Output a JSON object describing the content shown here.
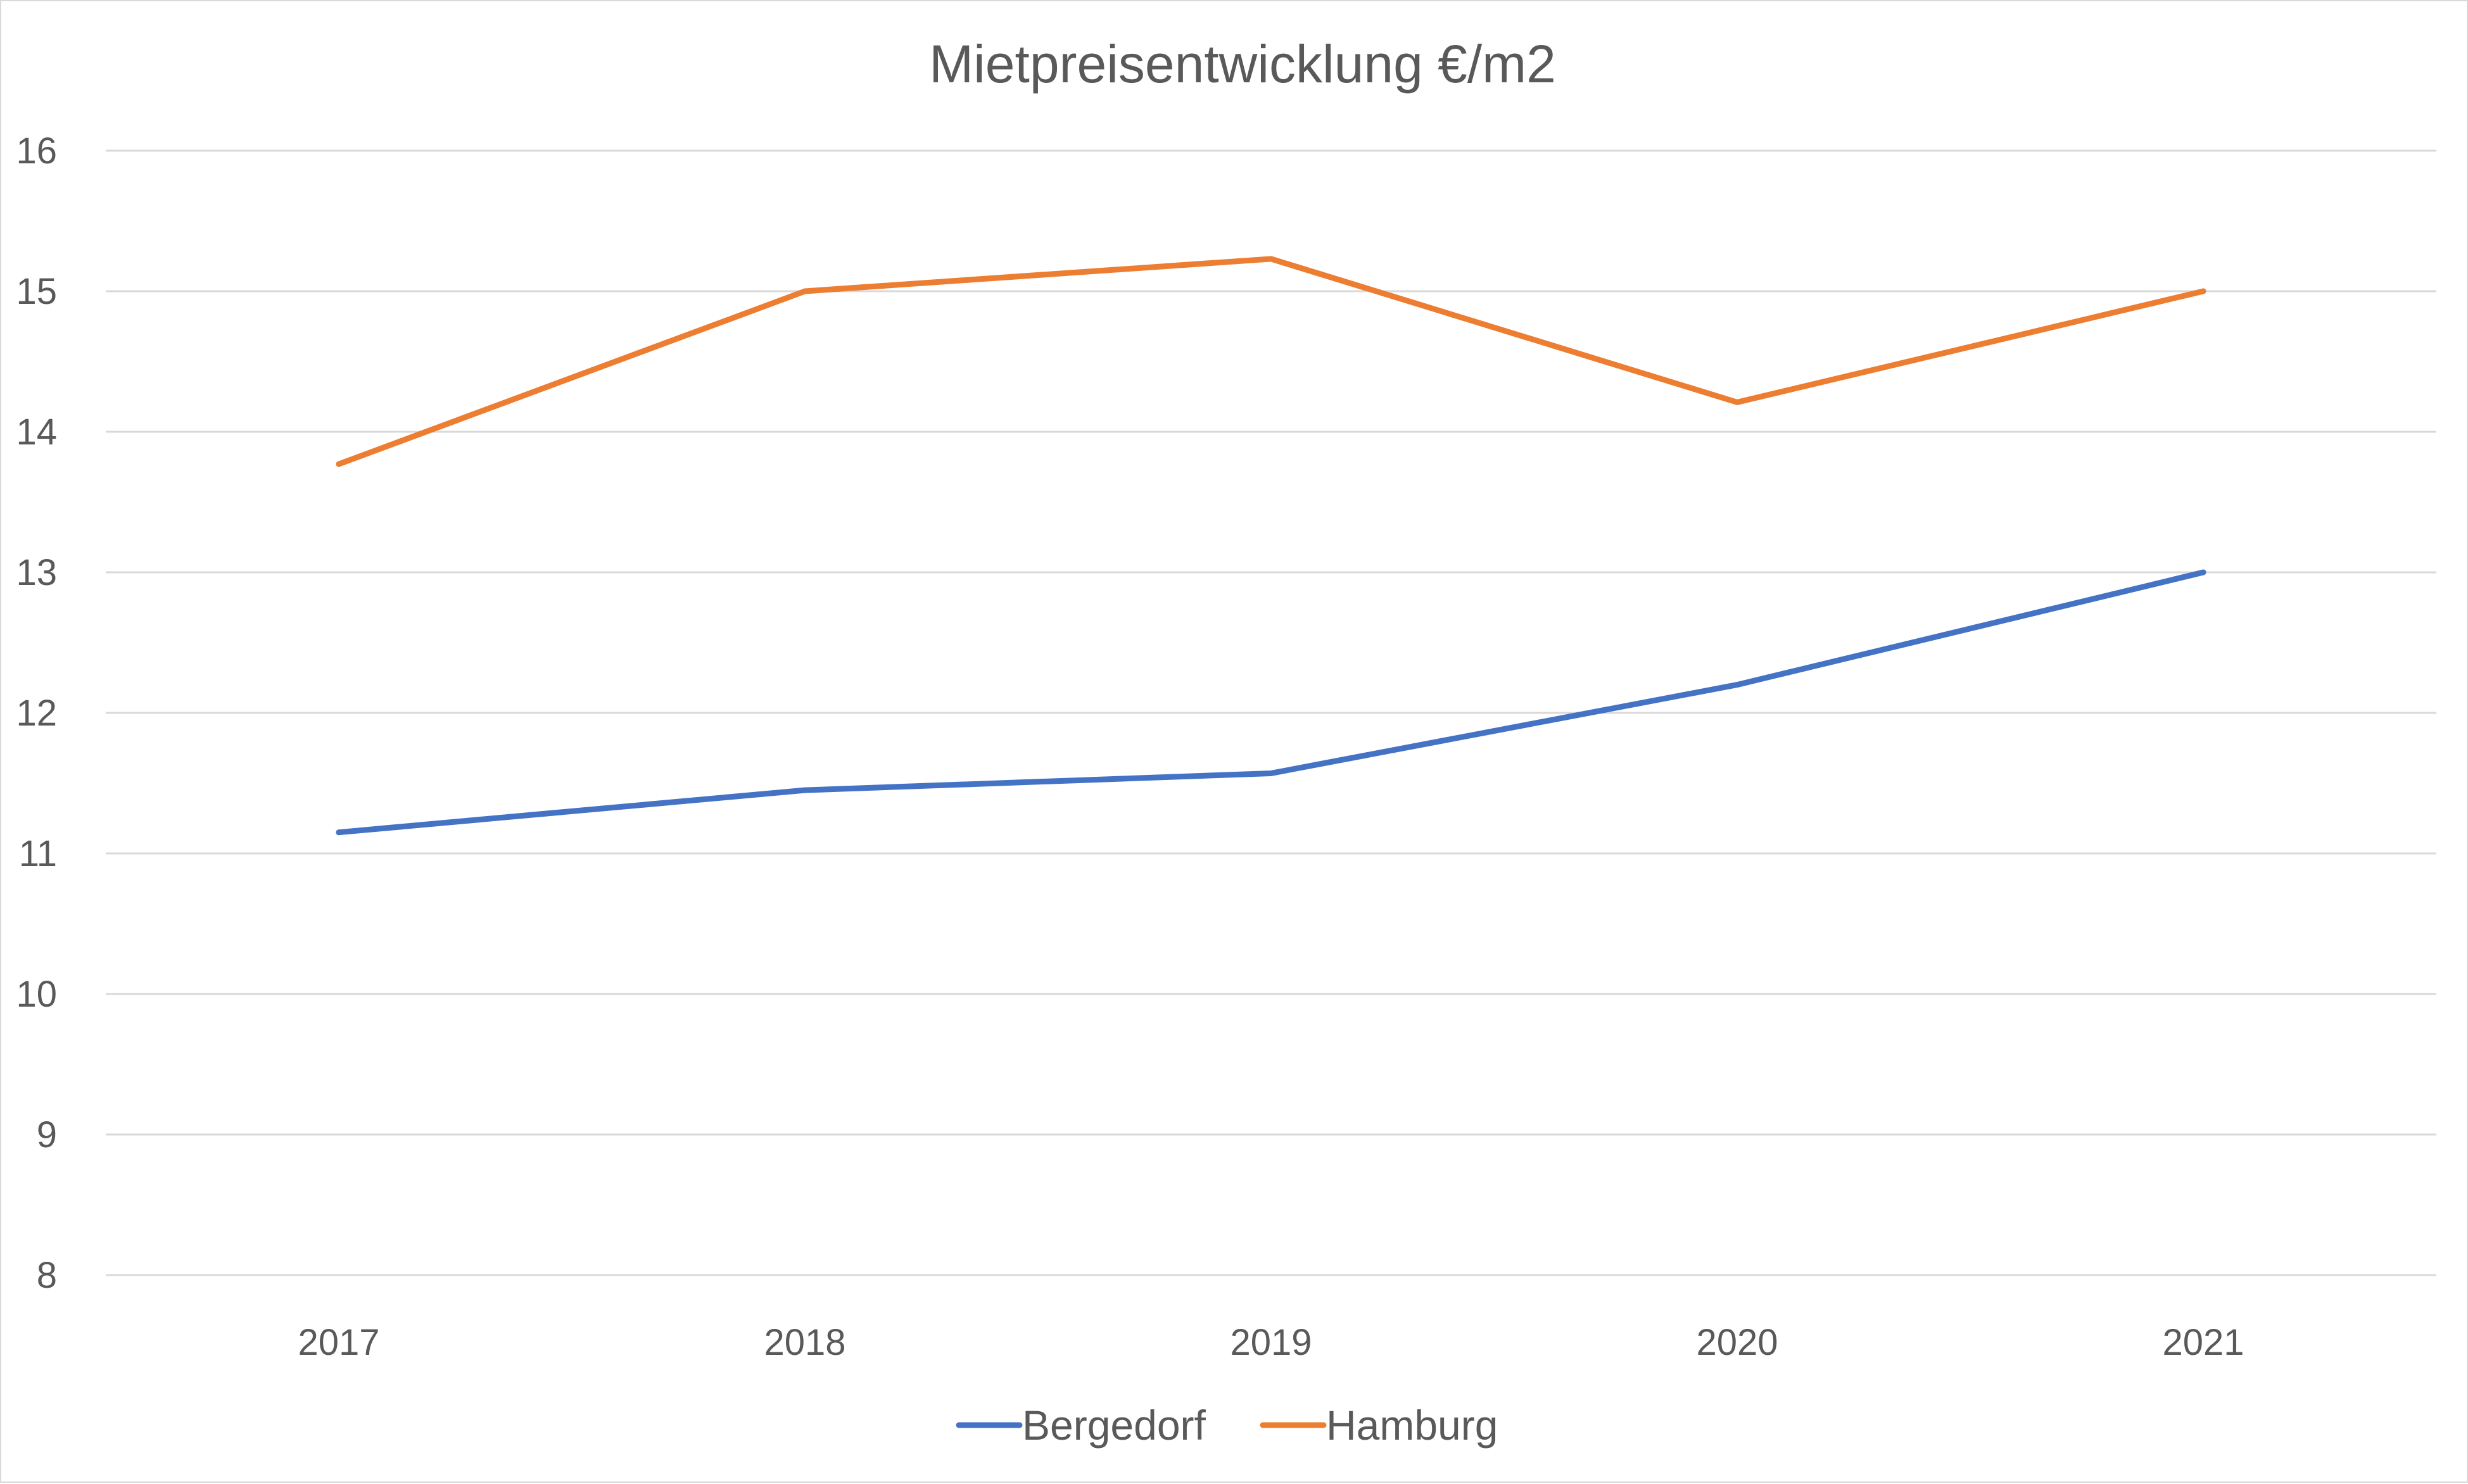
{
  "chart_data": {
    "type": "line",
    "title": "Mietpreisentwicklung  €/m2",
    "xlabel": "",
    "ylabel": "",
    "categories": [
      "2017",
      "2018",
      "2019",
      "2020",
      "2021"
    ],
    "yticks": [
      "8",
      "9",
      "10",
      "11",
      "12",
      "13",
      "14",
      "15",
      "16"
    ],
    "ylim": [
      8,
      16
    ],
    "grid": true,
    "legend_position": "bottom",
    "series": [
      {
        "name": "Bergedorf",
        "color": "#4472c4",
        "values": [
          11.15,
          11.45,
          11.57,
          12.2,
          13.0
        ]
      },
      {
        "name": "Hamburg",
        "color": "#ed7d31",
        "values": [
          13.77,
          15.0,
          15.23,
          14.21,
          15.0
        ]
      }
    ]
  }
}
